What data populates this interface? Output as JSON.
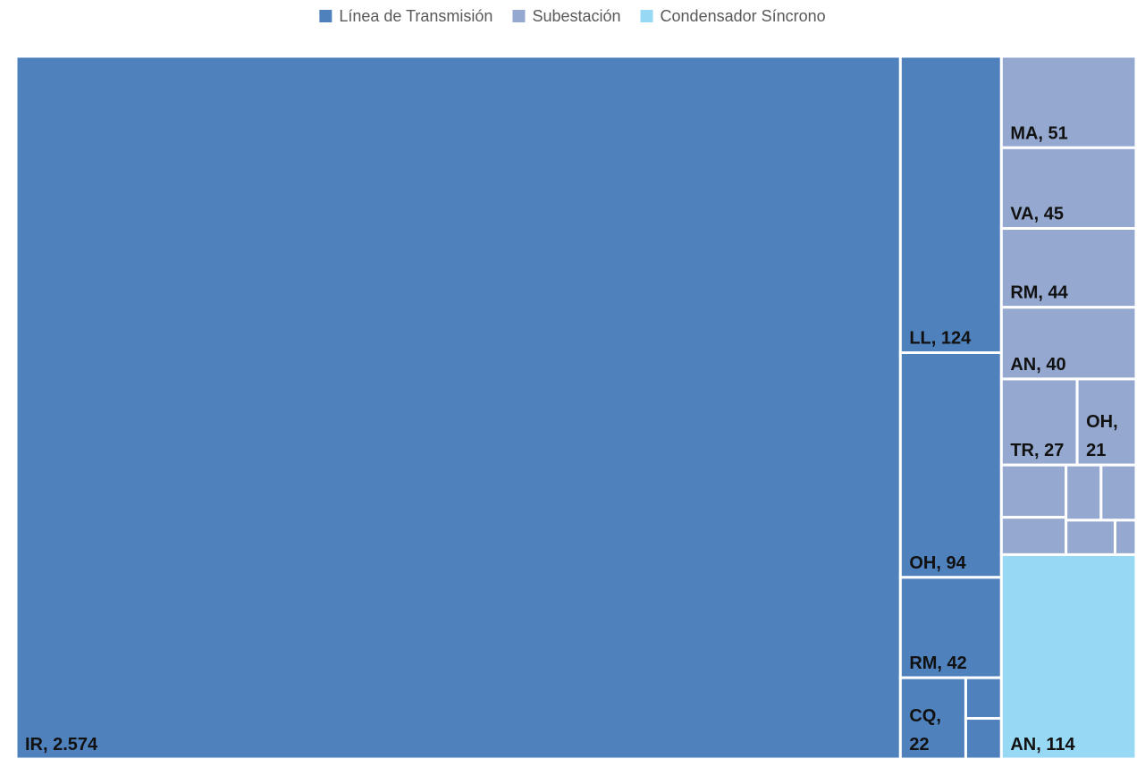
{
  "chart_data": {
    "type": "treemap",
    "series": [
      {
        "name": "Línea de Transmisión",
        "color": "#4f81bd",
        "values": [
          2574,
          124,
          94,
          42,
          22,
          6,
          6
        ],
        "labels": [
          "IR, 2.574",
          "LL, 124",
          "OH, 94",
          "RM, 42",
          "CQ, 22",
          null,
          null
        ]
      },
      {
        "name": "Subestación",
        "color": "#95a9d0",
        "values": [
          51,
          45,
          44,
          40,
          27,
          21,
          14,
          10,
          8,
          8,
          7,
          3
        ],
        "labels": [
          "MA, 51",
          "VA, 45",
          "RM, 44",
          "AN, 40",
          "TR, 27",
          "OH, 21",
          null,
          null,
          null,
          null,
          null,
          null
        ]
      },
      {
        "name": "Condensador Síncrono",
        "color": "#97d9f5",
        "values": [
          114
        ],
        "labels": [
          "AN, 114"
        ]
      }
    ],
    "legend": "top"
  }
}
